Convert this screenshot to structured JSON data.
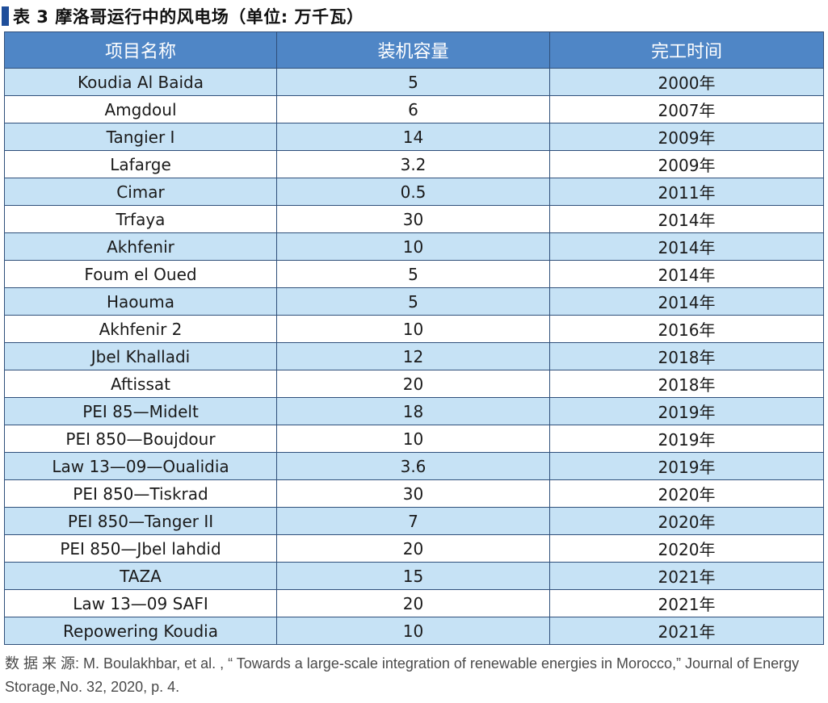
{
  "title": "表 3  摩洛哥运行中的风电场（单位: 万千瓦）",
  "headers": [
    "项目名称",
    "装机容量",
    "完工时间"
  ],
  "rows": [
    [
      "Koudia Al Baida",
      "5",
      "2000年"
    ],
    [
      "Amgdoul",
      "6",
      "2007年"
    ],
    [
      "Tangier I",
      "14",
      "2009年"
    ],
    [
      "Lafarge",
      "3.2",
      "2009年"
    ],
    [
      "Cimar",
      "0.5",
      "2011年"
    ],
    [
      "Trfaya",
      "30",
      "2014年"
    ],
    [
      "Akhfenir",
      "10",
      "2014年"
    ],
    [
      "Foum el Oued",
      "5",
      "2014年"
    ],
    [
      "Haouma",
      "5",
      "2014年"
    ],
    [
      "Akhfenir 2",
      "10",
      "2016年"
    ],
    [
      "Jbel Khalladi",
      "12",
      "2018年"
    ],
    [
      "Aftissat",
      "20",
      "2018年"
    ],
    [
      "PEI 85—Midelt",
      "18",
      "2019年"
    ],
    [
      "PEI 850—Boujdour",
      "10",
      "2019年"
    ],
    [
      "Law 13—09—Oualidia",
      "3.6",
      "2019年"
    ],
    [
      "PEI 850—Tiskrad",
      "30",
      "2020年"
    ],
    [
      "PEI 850—Tanger II",
      "7",
      "2020年"
    ],
    [
      "PEI 850—Jbel lahdid",
      "20",
      "2020年"
    ],
    [
      "TAZA",
      "15",
      "2021年"
    ],
    [
      "Law 13—09 SAFI",
      "20",
      "2021年"
    ],
    [
      "Repowering Koudia",
      "10",
      "2021年"
    ]
  ],
  "source": "数 据 来 源: M. Boulakhbar, et al. ,  “ Towards a large-scale integration of renewable energies in Morocco,” Journal of Energy Storage,No. 32, 2020, p. 4.",
  "colors": {
    "header_bg": "#4f86c6",
    "band_bg": "#c6e2f5",
    "marker": "#1f4e9a"
  }
}
